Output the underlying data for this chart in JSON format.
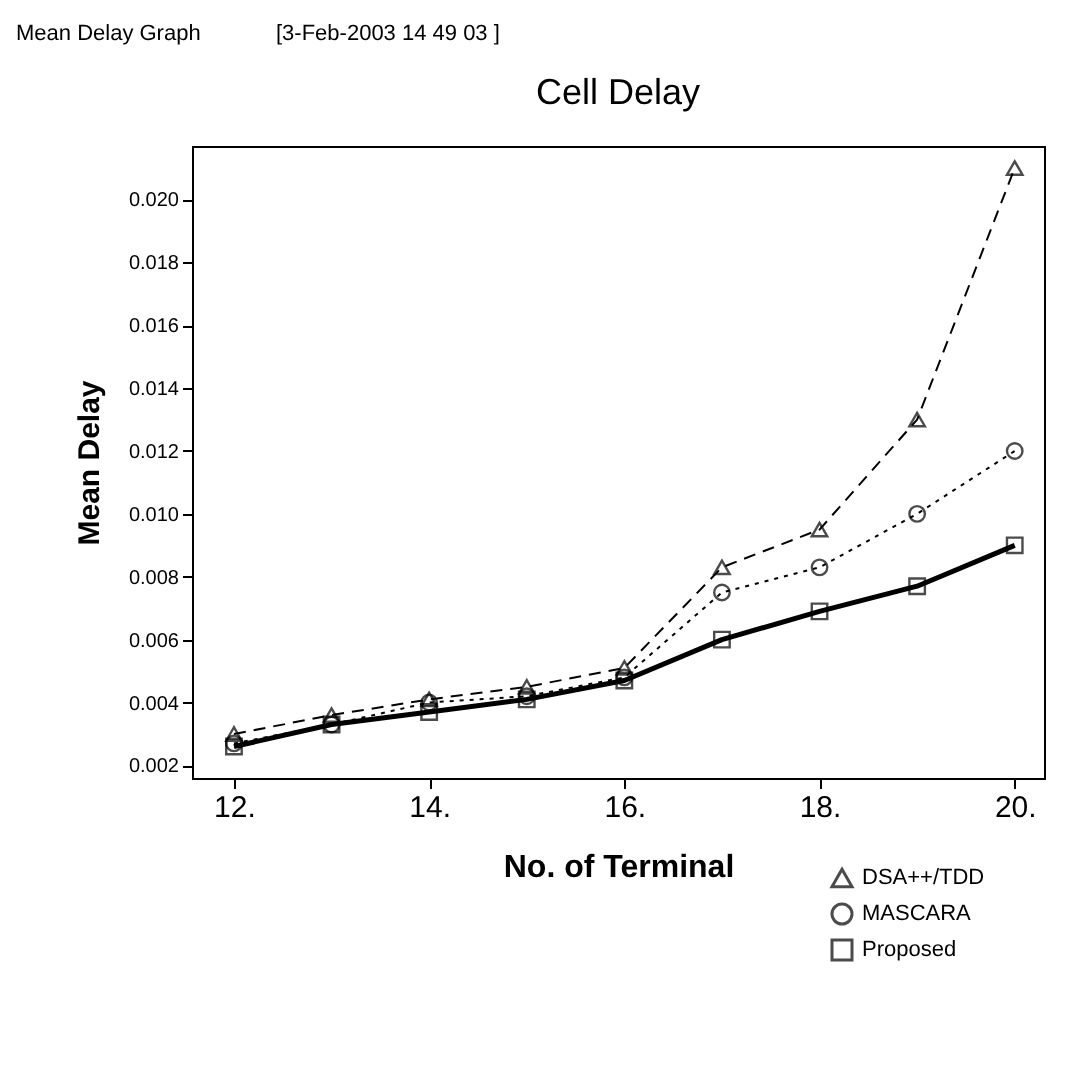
{
  "chart_data": {
    "type": "line",
    "title": "Cell Delay",
    "xlabel": "No. of Terminal",
    "ylabel": "Mean Delay",
    "annotations": [
      "Mean Delay Graph",
      "[3-Feb-2003 14 49 03 ]"
    ],
    "x": [
      12,
      13,
      14,
      15,
      16,
      17,
      18,
      19,
      20
    ],
    "xlim": [
      11.57,
      20.3
    ],
    "xticks": [
      {
        "value": 12,
        "label": "12."
      },
      {
        "value": 14,
        "label": "14."
      },
      {
        "value": 16,
        "label": "16."
      },
      {
        "value": 18,
        "label": "18."
      },
      {
        "value": 20,
        "label": "20."
      }
    ],
    "ylim": [
      0.0016,
      0.0217
    ],
    "yticks": [
      0.002,
      0.004,
      0.006,
      0.008,
      {
        "value": 0.01,
        "label": "0.010"
      },
      0.012,
      0.014,
      0.016,
      0.018,
      {
        "value": 0.02,
        "label": "0.020"
      }
    ],
    "grid": false,
    "legend": "bottom right",
    "series": [
      {
        "name": "DSA++/TDD",
        "color": "#000000",
        "marker": "triangle",
        "line_style": "dashed",
        "values": [
          0.003,
          0.0036,
          0.0041,
          0.0045,
          0.0051,
          0.0083,
          0.0095,
          0.013,
          0.021
        ]
      },
      {
        "name": "MASCARA",
        "color": "#000000",
        "marker": "circle",
        "line_style": "dotted",
        "values": [
          0.0027,
          0.0033,
          0.004,
          0.0042,
          0.0048,
          0.0075,
          0.0083,
          0.01,
          0.012
        ]
      },
      {
        "name": "Proposed",
        "color": "#000000",
        "marker": "square",
        "line_style": "solid",
        "values": [
          0.0026,
          0.0033,
          0.0037,
          0.0041,
          0.0047,
          0.006,
          0.0069,
          0.0077,
          0.009
        ]
      }
    ]
  }
}
